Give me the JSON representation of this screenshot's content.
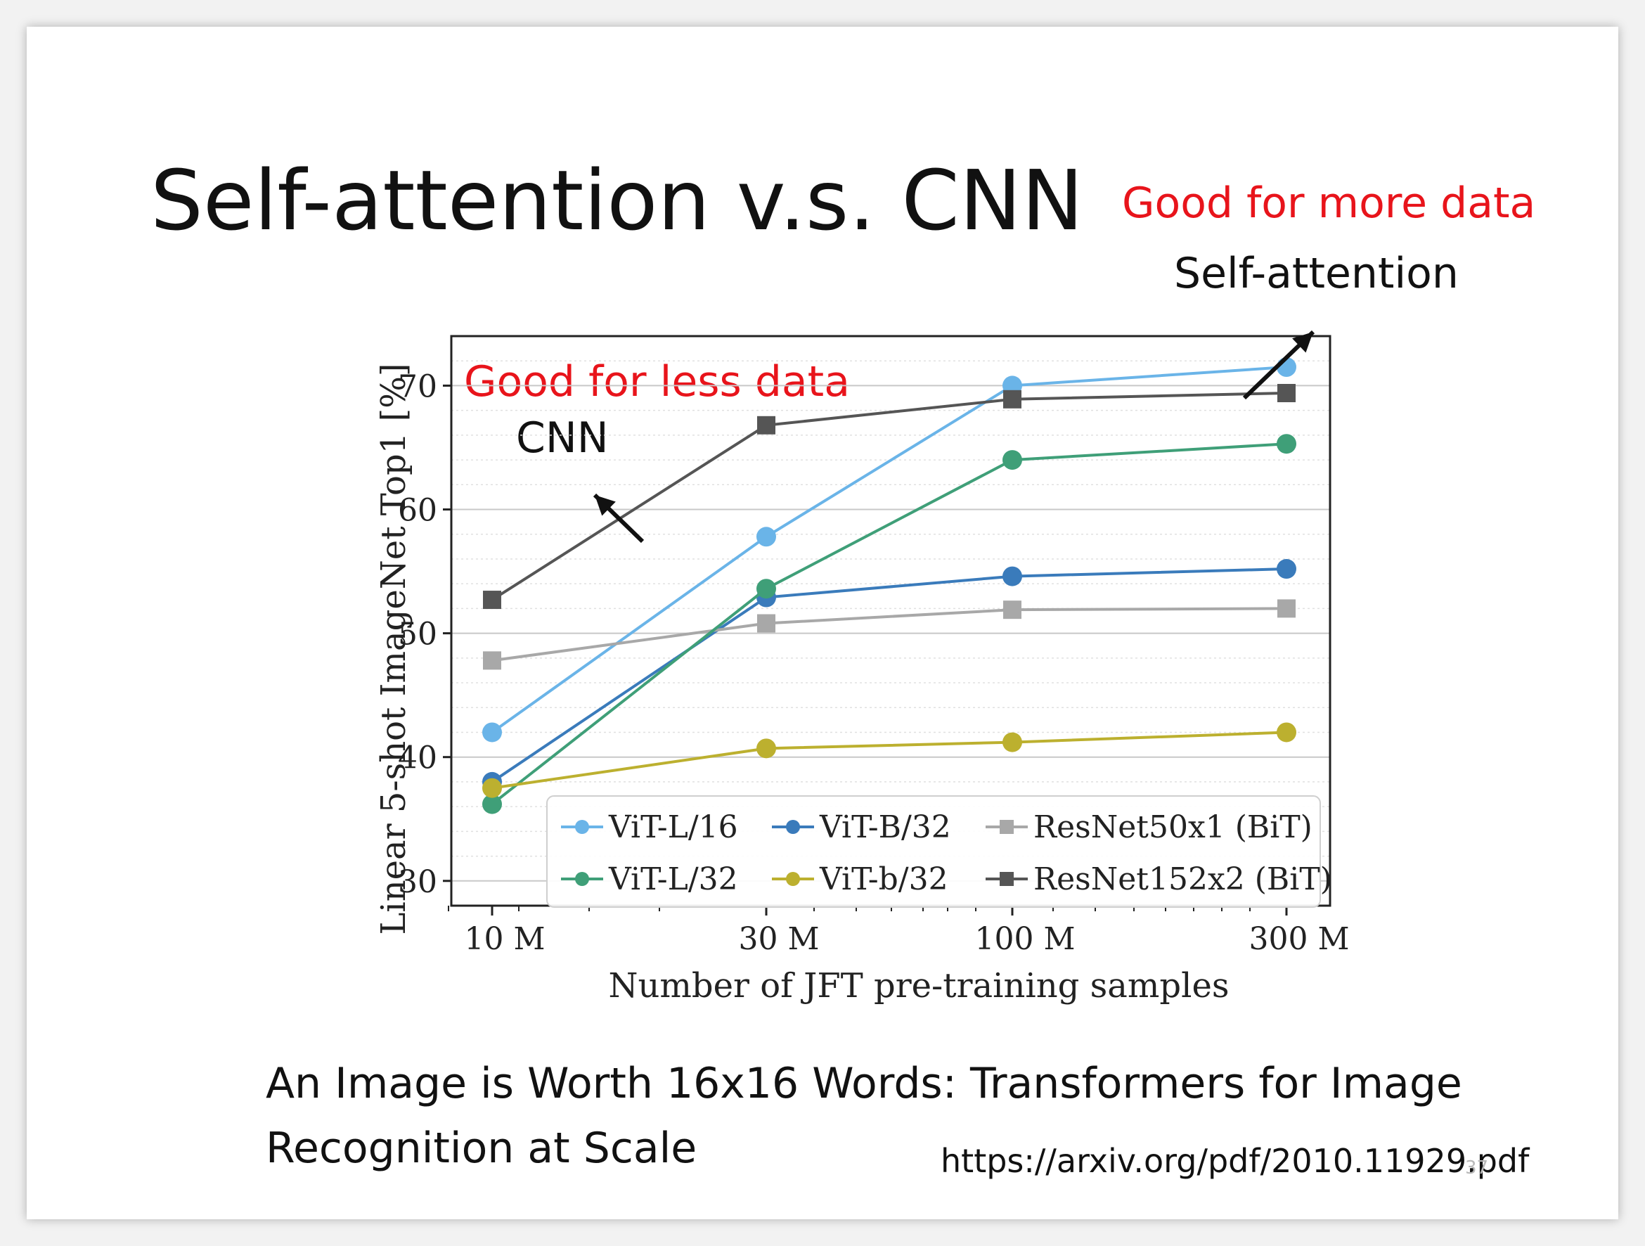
{
  "slide": {
    "title": "Self-attention v.s. CNN",
    "annotation_more": "Good for more data",
    "label_self_attention": "Self-attention",
    "annotation_less": "Good for less data",
    "label_cnn": "CNN",
    "reference_line1": "An Image is Worth 16x16 Words: Transformers for Image",
    "reference_line2": "Recognition at Scale",
    "reference_url": "https://arxiv.org/pdf/2010.11929.pdf",
    "page_number": "37"
  },
  "chart_data": {
    "type": "line",
    "xlabel": "Number of JFT pre-training samples",
    "ylabel": "Linear 5-shot ImageNet Top1 [%]",
    "categories": [
      "10 M",
      "30 M",
      "100 M",
      "300 M"
    ],
    "x_scale": "log",
    "ylim": [
      28,
      74
    ],
    "yticks": [
      30,
      40,
      50,
      60,
      70
    ],
    "grid": true,
    "legend_position": "bottom-right",
    "series": [
      {
        "name": "ViT-L/16",
        "color": "#6ab4e8",
        "marker": "circle",
        "values": [
          42.0,
          57.8,
          70.0,
          71.5
        ]
      },
      {
        "name": "ViT-B/32",
        "color": "#3a7bbb",
        "marker": "circle",
        "values": [
          38.0,
          52.9,
          54.6,
          55.2
        ]
      },
      {
        "name": "ResNet50x1 (BiT)",
        "color": "#a8a8a8",
        "marker": "square",
        "values": [
          47.8,
          50.8,
          51.9,
          52.0
        ]
      },
      {
        "name": "ViT-L/32",
        "color": "#3f9f78",
        "marker": "circle",
        "values": [
          36.2,
          53.6,
          64.0,
          65.3
        ]
      },
      {
        "name": "ViT-b/32",
        "color": "#bcb02f",
        "marker": "circle",
        "values": [
          37.5,
          40.7,
          41.2,
          42.0
        ]
      },
      {
        "name": "ResNet152x2 (BiT)",
        "color": "#555555",
        "marker": "square",
        "values": [
          52.7,
          66.8,
          68.9,
          69.4
        ]
      }
    ]
  }
}
